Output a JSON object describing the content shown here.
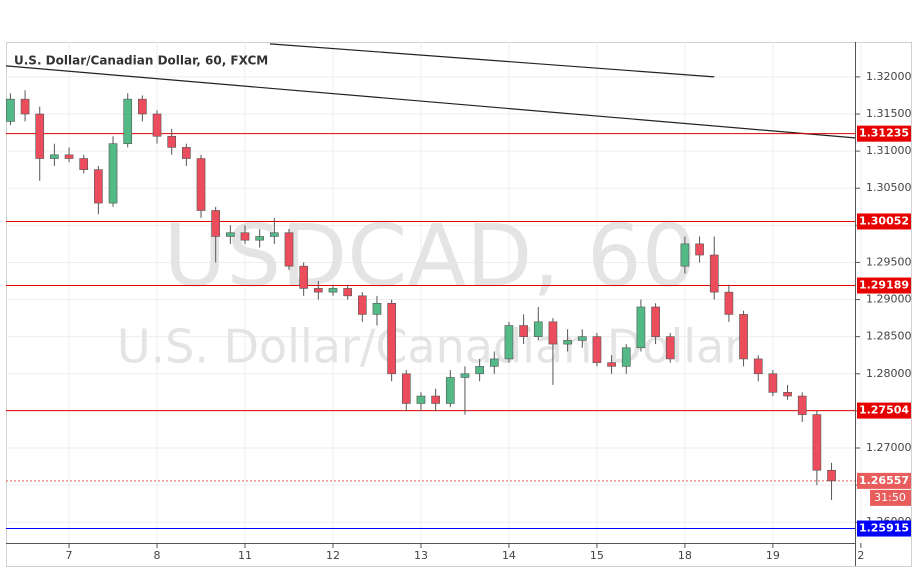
{
  "chart_data": {
    "type": "candlestick",
    "title": "U.S. Dollar/Canadian Dollar, 60, FXCM",
    "watermark": [
      "USDCAD, 60",
      "U.S. Dollar/Canadian Dollar"
    ],
    "up_color": "#53b987",
    "down_color": "#eb4d5c",
    "x": [
      0,
      1,
      2,
      3,
      4,
      5,
      6,
      7,
      8,
      9,
      10,
      11,
      12,
      13,
      14,
      15,
      16,
      17,
      18,
      19,
      20,
      21,
      22,
      23,
      24,
      25,
      26,
      27,
      28,
      29,
      30,
      31,
      32,
      33,
      34,
      35,
      36,
      37,
      38,
      39,
      40,
      41,
      42,
      43,
      44,
      45,
      46,
      47,
      48,
      49,
      50,
      51,
      52,
      53,
      54,
      55,
      56
    ],
    "open": [
      1.314,
      1.317,
      1.315,
      1.309,
      1.3095,
      1.309,
      1.3075,
      1.303,
      1.311,
      1.317,
      1.315,
      1.312,
      1.3105,
      1.309,
      1.302,
      1.2985,
      1.299,
      1.298,
      1.2985,
      1.299,
      1.2945,
      1.2915,
      1.291,
      1.2915,
      1.2905,
      1.288,
      1.2895,
      1.28,
      1.276,
      1.277,
      1.276,
      1.2795,
      1.28,
      1.281,
      1.282,
      1.2865,
      1.285,
      1.287,
      1.284,
      1.2845,
      1.285,
      1.2815,
      1.281,
      1.2835,
      1.289,
      1.285,
      1.2945,
      1.2975,
      1.296,
      1.291,
      1.288,
      1.282,
      1.28,
      1.2775,
      1.277,
      1.2745,
      1.267
    ],
    "high": [
      1.3178,
      1.3182,
      1.316,
      1.311,
      1.3105,
      1.3095,
      1.308,
      1.312,
      1.3178,
      1.3175,
      1.3155,
      1.313,
      1.311,
      1.3095,
      1.3025,
      1.3,
      1.3,
      1.2995,
      1.301,
      1.2995,
      1.295,
      1.2925,
      1.292,
      1.292,
      1.291,
      1.2905,
      1.29,
      1.2805,
      1.2775,
      1.278,
      1.2805,
      1.281,
      1.282,
      1.283,
      1.287,
      1.288,
      1.289,
      1.2875,
      1.286,
      1.286,
      1.2855,
      1.2825,
      1.284,
      1.29,
      1.2895,
      1.2855,
      1.2985,
      1.2985,
      1.2985,
      1.292,
      1.2885,
      1.2825,
      1.2805,
      1.2785,
      1.2775,
      1.275,
      1.268
    ],
    "low": [
      1.3135,
      1.314,
      1.306,
      1.308,
      1.3085,
      1.307,
      1.3015,
      1.3025,
      1.3105,
      1.314,
      1.311,
      1.3095,
      1.308,
      1.301,
      1.295,
      1.2975,
      1.2975,
      1.297,
      1.2975,
      1.294,
      1.2905,
      1.29,
      1.2905,
      1.29,
      1.287,
      1.2865,
      1.279,
      1.275,
      1.275,
      1.275,
      1.2755,
      1.2745,
      1.279,
      1.28,
      1.2815,
      1.284,
      1.2845,
      1.2785,
      1.283,
      1.2835,
      1.281,
      1.28,
      1.28,
      1.283,
      1.284,
      1.2815,
      1.2935,
      1.295,
      1.29,
      1.287,
      1.281,
      1.279,
      1.277,
      1.2765,
      1.2735,
      1.265,
      1.263
    ],
    "close": [
      1.317,
      1.315,
      1.309,
      1.3095,
      1.309,
      1.3075,
      1.303,
      1.311,
      1.317,
      1.315,
      1.312,
      1.3105,
      1.309,
      1.302,
      1.2985,
      1.299,
      1.298,
      1.2985,
      1.299,
      1.2945,
      1.2915,
      1.291,
      1.2915,
      1.2905,
      1.288,
      1.2895,
      1.28,
      1.276,
      1.277,
      1.276,
      1.2795,
      1.28,
      1.281,
      1.282,
      1.2865,
      1.285,
      1.287,
      1.284,
      1.2845,
      1.285,
      1.2815,
      1.281,
      1.2835,
      1.289,
      1.285,
      1.282,
      1.2975,
      1.296,
      1.291,
      1.288,
      1.282,
      1.28,
      1.2775,
      1.277,
      1.2745,
      1.267,
      1.26557
    ],
    "xlim": [
      -0.3,
      57.6
    ],
    "xticks": [
      {
        "value": 4,
        "label": "7"
      },
      {
        "value": 10,
        "label": "8"
      },
      {
        "value": 16,
        "label": "11"
      },
      {
        "value": 22,
        "label": "12"
      },
      {
        "value": 28,
        "label": "13"
      },
      {
        "value": 34,
        "label": "14"
      },
      {
        "value": 40,
        "label": "15"
      },
      {
        "value": 46,
        "label": "18"
      },
      {
        "value": 52,
        "label": "19"
      },
      {
        "value": 58,
        "label": "2"
      }
    ],
    "ylim": [
      1.2572,
      1.3247
    ],
    "yticks": [
      {
        "value": 1.26,
        "label": "1.26000"
      },
      {
        "value": 1.265,
        "label": "1.26500"
      },
      {
        "value": 1.27,
        "label": "1.27000"
      },
      {
        "value": 1.275,
        "label": "1.27500"
      },
      {
        "value": 1.28,
        "label": "1.28000"
      },
      {
        "value": 1.285,
        "label": "1.28500"
      },
      {
        "value": 1.29,
        "label": "1.29000"
      },
      {
        "value": 1.295,
        "label": "1.29500"
      },
      {
        "value": 1.3,
        "label": "1.30000"
      },
      {
        "value": 1.305,
        "label": "1.30500"
      },
      {
        "value": 1.31,
        "label": "1.31000"
      },
      {
        "value": 1.315,
        "label": "1.31500"
      },
      {
        "value": 1.32,
        "label": "1.32000"
      }
    ],
    "grid": true,
    "levels": [
      {
        "value": 1.31235,
        "color": "#e60000"
      },
      {
        "value": 1.30052,
        "color": "#e60000"
      },
      {
        "value": 1.29189,
        "color": "#e60000"
      },
      {
        "value": 1.27504,
        "color": "#e60000"
      },
      {
        "value": 1.25915,
        "color": "#0000ff"
      }
    ],
    "last_price": {
      "value": 1.26557,
      "color": "#e85c5c",
      "countdown": "31:50"
    },
    "trendlines": [
      {
        "x": [
          -0.3,
          57.6
        ],
        "y": [
          1.32148,
          1.31178
        ]
      },
      {
        "x": [
          17.7,
          48
        ],
        "y": [
          1.32445,
          1.32
        ]
      }
    ]
  }
}
